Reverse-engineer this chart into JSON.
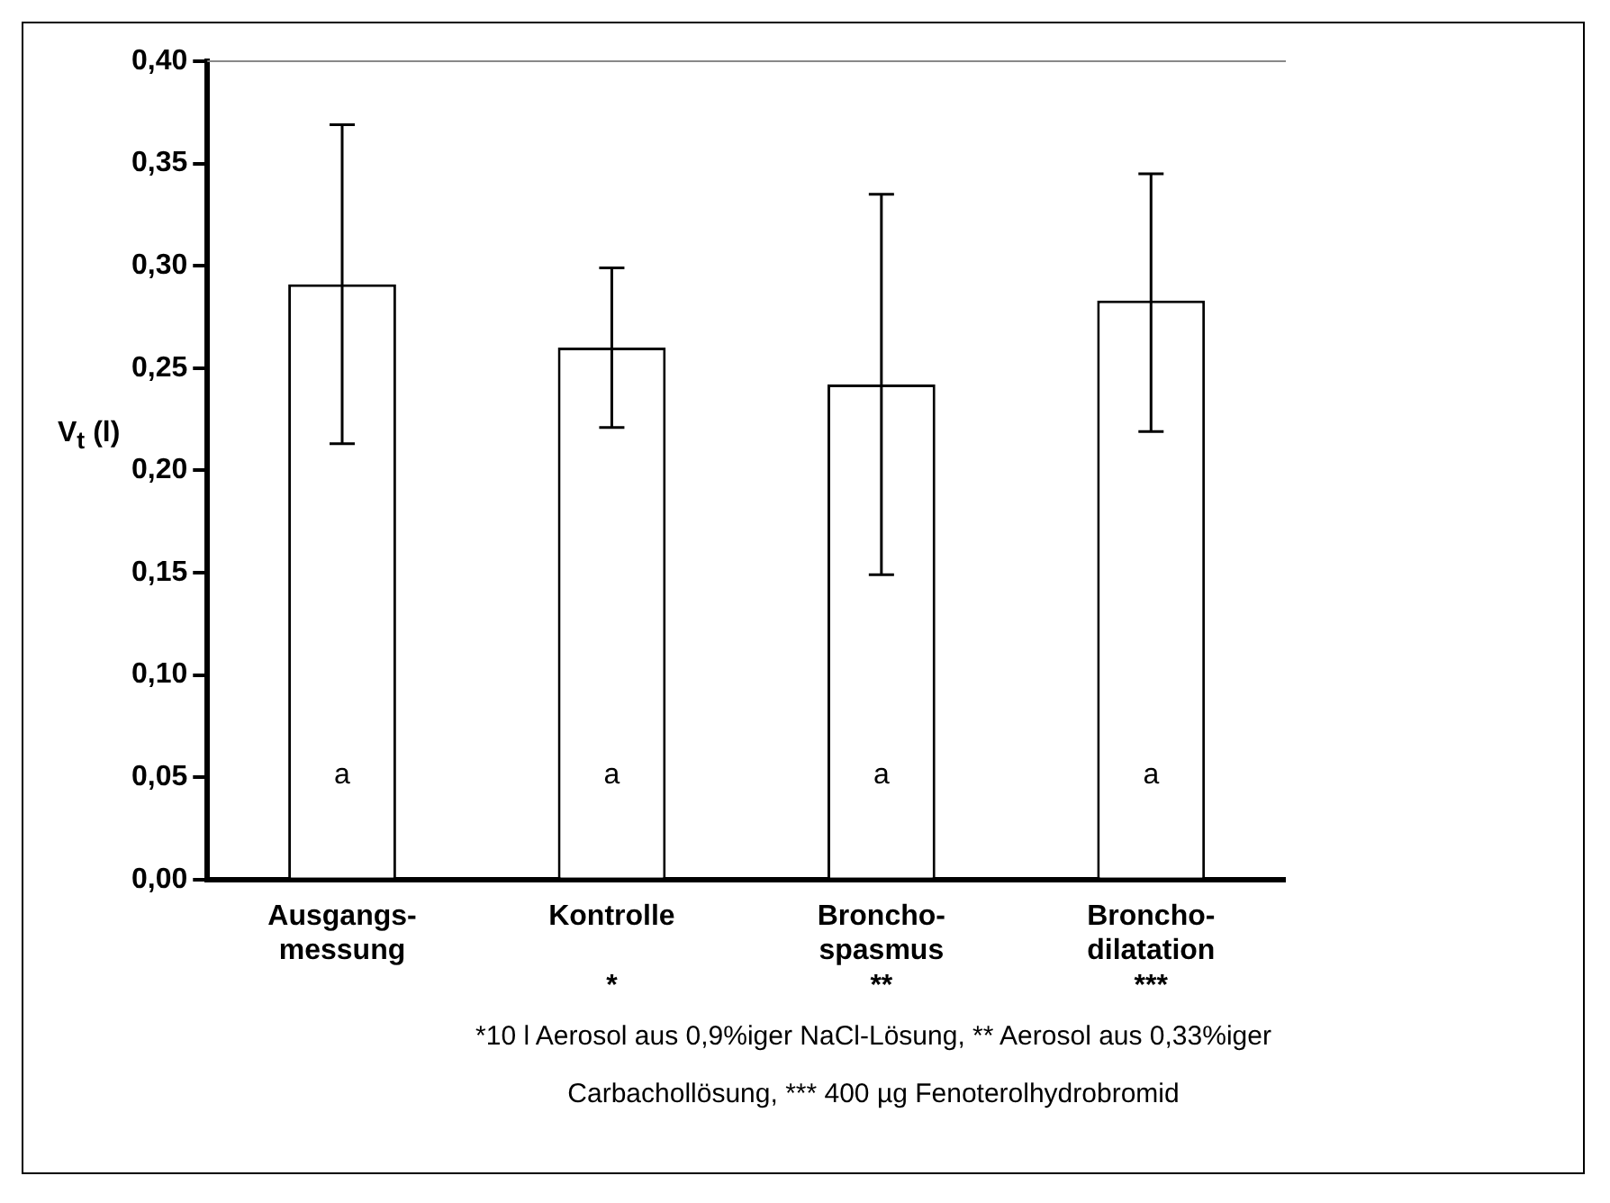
{
  "chart_data": {
    "type": "bar",
    "ylabel": "V$_{t}$ (l)",
    "categories": [
      "Ausgangs-\nmessung",
      "Kontrolle\n\n*",
      "Broncho-\nspasmus\n**",
      "Broncho-\ndilatation\n***"
    ],
    "values": [
      0.291,
      0.26,
      0.242,
      0.283
    ],
    "errors": [
      [
        0.213,
        0.369
      ],
      [
        0.221,
        0.299
      ],
      [
        0.149,
        0.335
      ],
      [
        0.219,
        0.345
      ]
    ],
    "color": "#ffffff",
    "ylim": [
      0,
      0.4
    ],
    "yticks": [
      {
        "value": 0,
        "label": "0,00"
      },
      {
        "value": 0.05,
        "label": "0,05"
      },
      {
        "value": 0.1,
        "label": "0,10"
      },
      {
        "value": 0.15,
        "label": "0,15"
      },
      {
        "value": 0.2,
        "label": "0,20"
      },
      {
        "value": 0.25,
        "label": "0,25"
      },
      {
        "value": 0.3,
        "label": "0,30"
      },
      {
        "value": 0.35,
        "label": "0,35"
      },
      {
        "value": 0.4,
        "label": "0,40"
      }
    ],
    "grid": false,
    "legend": false,
    "annotations": [
      "a",
      "a",
      "a",
      "a",
      "*10 l Aerosol aus 0,9%iger NaCl-Lösung, ** Aerosol aus 0,33%iger Carbachollösung, *** 400 µg Fenoterolhydrobromid"
    ]
  }
}
